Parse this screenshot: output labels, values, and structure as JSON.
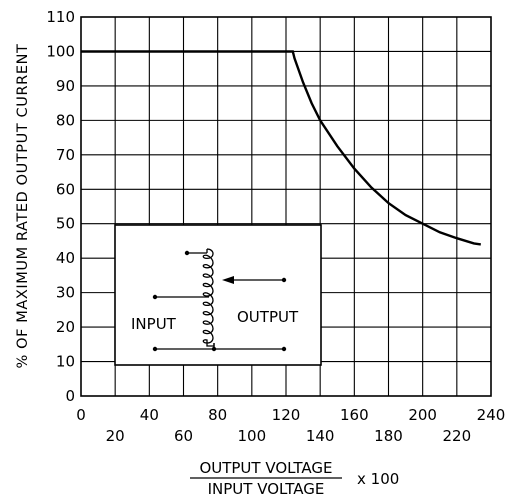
{
  "chart_data": {
    "type": "line",
    "ylabel": "% OF MAXIMUM RATED OUTPUT CURRENT",
    "xlabel": {
      "numerator": "OUTPUT VOLTAGE",
      "denominator": "INPUT VOLTAGE",
      "multiplier": "x 100"
    },
    "xlim": [
      0,
      240
    ],
    "ylim": [
      0,
      110
    ],
    "x_ticks_upper": [
      "0",
      "40",
      "80",
      "120",
      "160",
      "200",
      "240"
    ],
    "x_ticks_lower": [
      "20",
      "60",
      "100",
      "140",
      "180",
      "220"
    ],
    "y_ticks": [
      "0",
      "10",
      "20",
      "30",
      "40",
      "50",
      "60",
      "70",
      "80",
      "90",
      "100",
      "110"
    ],
    "grid": true,
    "series": [
      {
        "x": [
          0,
          124,
          125,
          130,
          135,
          140,
          150,
          160,
          170,
          180,
          190,
          200,
          210,
          220,
          230,
          234
        ],
        "y": [
          100,
          100,
          98,
          91,
          85,
          80,
          72.5,
          66,
          60.5,
          56,
          52.5,
          50,
          47.5,
          45.8,
          44.3,
          44
        ]
      }
    ],
    "inset": {
      "input_label": "INPUT",
      "output_label": "OUTPUT"
    }
  }
}
